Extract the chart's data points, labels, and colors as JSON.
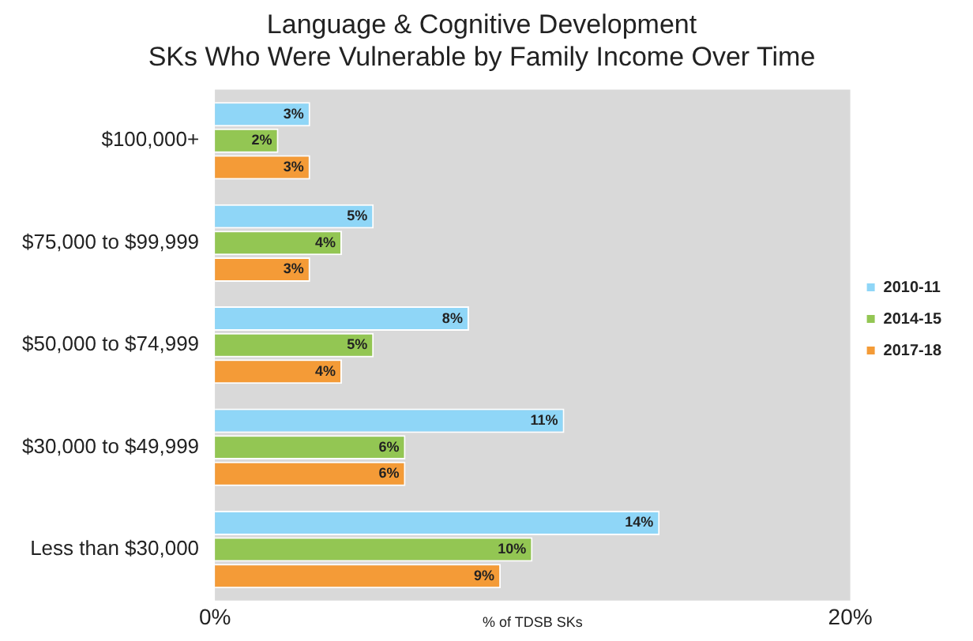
{
  "chart_data": {
    "type": "bar",
    "orientation": "horizontal",
    "title": "Language & Cognitive Development",
    "subtitle": "SKs Who Were Vulnerable by Family Income Over Time",
    "xlabel": "% of TDSB SKs",
    "categories": [
      "$100,000+",
      "$75,000 to $99,999",
      "$50,000 to $74,999",
      "$30,000 to $49,999",
      "Less than $30,000"
    ],
    "series": [
      {
        "name": "2010-11",
        "color": "#8fd6f7",
        "values": [
          3,
          5,
          8,
          11,
          14
        ],
        "value_labels": [
          "3%",
          "5%",
          "8%",
          "11%",
          "14%"
        ]
      },
      {
        "name": "2014-15",
        "color": "#93c653",
        "values": [
          2,
          4,
          5,
          6,
          10
        ],
        "value_labels": [
          "2%",
          "4%",
          "5%",
          "6%",
          "10%"
        ]
      },
      {
        "name": "2017-18",
        "color": "#f49b37",
        "values": [
          3,
          3,
          4,
          6,
          9
        ],
        "value_labels": [
          "3%",
          "3%",
          "4%",
          "6%",
          "9%"
        ]
      }
    ],
    "xlim": [
      0,
      20
    ],
    "xticks": [
      {
        "value": 0,
        "label": "0%"
      },
      {
        "value": 20,
        "label": "20%"
      }
    ],
    "grid": false,
    "legend": "right"
  }
}
